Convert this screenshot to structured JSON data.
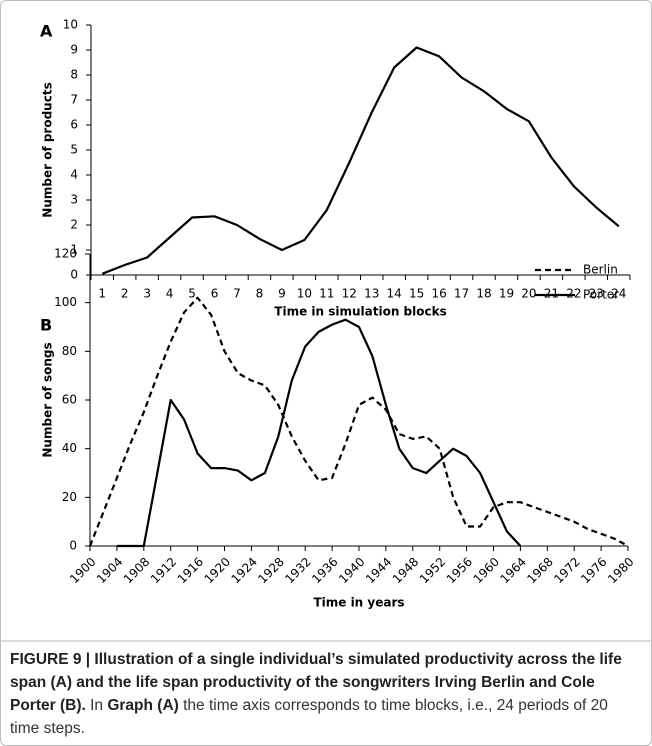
{
  "chart_data": [
    {
      "type": "line",
      "panel": "A",
      "x_label": "Time in simulation blocks",
      "y_label": "Number of products",
      "categories": [
        "1",
        "2",
        "3",
        "4",
        "5",
        "6",
        "7",
        "8",
        "9",
        "10",
        "11",
        "12",
        "13",
        "14",
        "15",
        "16",
        "17",
        "18",
        "19",
        "20",
        "21",
        "22",
        "23",
        "24"
      ],
      "series": [
        {
          "name": null,
          "color": "#000000",
          "style": "solid",
          "values": [
            0.05,
            0.4,
            0.7,
            1.5,
            2.3,
            2.35,
            2.0,
            1.45,
            1.0,
            1.4,
            2.6,
            4.5,
            6.5,
            8.3,
            9.1,
            8.75,
            7.9,
            7.35,
            6.65,
            6.15,
            4.7,
            3.55,
            2.7,
            1.95
          ]
        }
      ],
      "ylim": [
        0,
        10
      ],
      "yticks": [
        0,
        1,
        2,
        3,
        4,
        5,
        6,
        7,
        8,
        9,
        10
      ],
      "grid": false,
      "legend": null
    },
    {
      "type": "line",
      "panel": "B",
      "x_label": "Time in years",
      "y_label": "Number of songs",
      "x": [
        1900,
        1902,
        1904,
        1906,
        1908,
        1910,
        1912,
        1914,
        1916,
        1918,
        1920,
        1922,
        1924,
        1926,
        1928,
        1930,
        1932,
        1934,
        1936,
        1938,
        1940,
        1942,
        1944,
        1946,
        1948,
        1950,
        1952,
        1954,
        1956,
        1958,
        1960,
        1962,
        1964,
        1966,
        1968,
        1970,
        1972,
        1974,
        1976,
        1978,
        1980
      ],
      "series": [
        {
          "name": "Berlin",
          "color": "#000000",
          "style": "dashed",
          "values": [
            0,
            14,
            28,
            42,
            55,
            70,
            84,
            96,
            102,
            95,
            80,
            71,
            68,
            66,
            58,
            45,
            35,
            27,
            28,
            42,
            58,
            61,
            56,
            46,
            44,
            45,
            40,
            20,
            8,
            8,
            16,
            18,
            18,
            16,
            14,
            12,
            10,
            7,
            5,
            3,
            0
          ]
        },
        {
          "name": "Porter",
          "color": "#000000",
          "style": "solid",
          "values": [
            null,
            null,
            0,
            0,
            0,
            30,
            60,
            52,
            38,
            32,
            32,
            31,
            27,
            30,
            45,
            68,
            82,
            88,
            91,
            93,
            90,
            78,
            58,
            40,
            32,
            30,
            35,
            40,
            37,
            30,
            18,
            6,
            0,
            null,
            null,
            null,
            null,
            null,
            null,
            null,
            null
          ]
        }
      ],
      "xlim": [
        1900,
        1980
      ],
      "xticks": [
        1900,
        1904,
        1908,
        1912,
        1916,
        1920,
        1924,
        1928,
        1932,
        1936,
        1940,
        1944,
        1948,
        1952,
        1956,
        1960,
        1964,
        1968,
        1972,
        1976,
        1980
      ],
      "ylim": [
        0,
        120
      ],
      "yticks": [
        0,
        20,
        40,
        60,
        80,
        100,
        120
      ],
      "grid": false,
      "legend": "top-right"
    }
  ],
  "caption": [
    {
      "text": "FIGURE 9 | Illustration of a single individual’s simulated productivity across the life span (A) and the life span productivity of the songwriters Irving Berlin and Cole Porter (B).",
      "bold": true
    },
    {
      "text": " In ",
      "bold": false
    },
    {
      "text": "Graph (A)",
      "bold": true
    },
    {
      "text": " the time axis corresponds to time blocks, i.e., 24 periods of 20 time steps.",
      "bold": false
    }
  ]
}
